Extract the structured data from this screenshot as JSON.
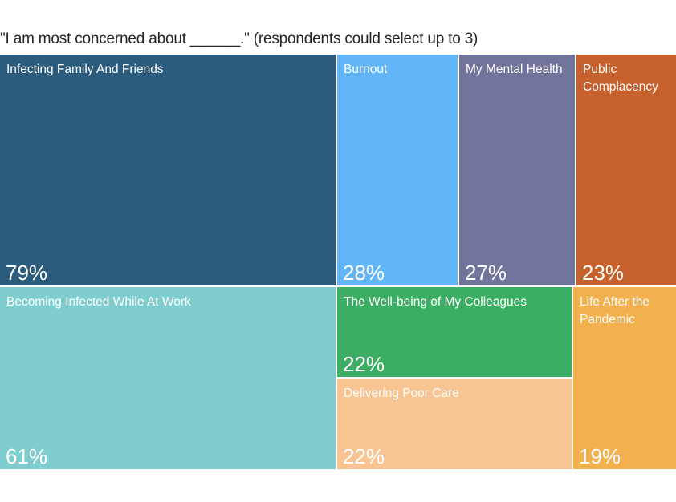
{
  "chart_data": {
    "type": "treemap",
    "title": "\"I am most concerned about ______.\" (respondents could select up to 3)",
    "title_color": "#252423",
    "label_color": "#ffffff",
    "legend": "none",
    "items": [
      {
        "label": "Infecting Family And Friends",
        "value": 79,
        "value_label": "79%",
        "color": "#2b5c7e"
      },
      {
        "label": "Burnout",
        "value": 28,
        "value_label": "28%",
        "color": "#62b6f8"
      },
      {
        "label": "My Mental Health",
        "value": 27,
        "value_label": "27%",
        "color": "#71749a"
      },
      {
        "label": "Public Complacency",
        "value": 23,
        "value_label": "23%",
        "color": "#c6602c"
      },
      {
        "label": "Becoming Infected While At Work",
        "value": 61,
        "value_label": "61%",
        "color": "#7fcdce"
      },
      {
        "label": "The Well-being of My Colleagues",
        "value": 22,
        "value_label": "22%",
        "color": "#3bae63"
      },
      {
        "label": "Delivering Poor Care",
        "value": 22,
        "value_label": "22%",
        "color": "#f7c492"
      },
      {
        "label": "Life After the Pandemic",
        "value": 19,
        "value_label": "19%",
        "color": "#f2b04f"
      }
    ]
  }
}
